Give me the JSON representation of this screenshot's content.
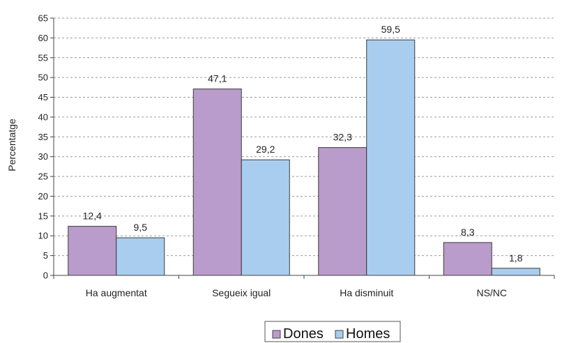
{
  "chart_data": {
    "type": "bar",
    "ylabel": "Percentatge",
    "ylim": [
      0,
      65
    ],
    "ytick_step": 5,
    "grid": "horizontal-dashed",
    "legend_position": "bottom",
    "categories": [
      "Ha augmentat",
      "Segueix igual",
      "Ha disminuit",
      "NS/NC"
    ],
    "series": [
      {
        "name": "Dones",
        "color": "#b99ccb",
        "values": [
          12.4,
          47.1,
          32.3,
          8.3
        ],
        "labels": [
          "12,4",
          "47,1",
          "32,3",
          "8,3"
        ]
      },
      {
        "name": "Homes",
        "color": "#a9cdee",
        "values": [
          9.5,
          29.2,
          59.5,
          1.8
        ],
        "labels": [
          "9,5",
          "29,2",
          "59,5",
          "1,8"
        ]
      }
    ]
  }
}
